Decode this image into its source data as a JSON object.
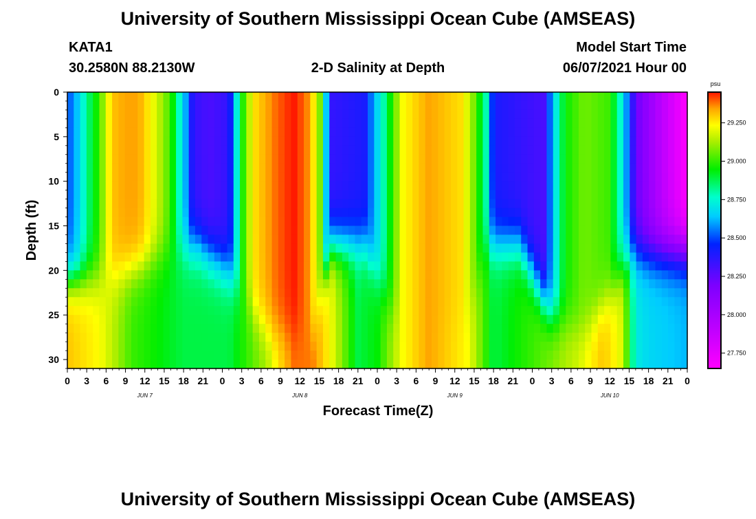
{
  "chart_data": {
    "type": "heatmap",
    "title": "University of Southern Mississippi Ocean Cube (AMSEAS)",
    "footer_title": "University of Southern Mississippi Ocean Cube (AMSEAS)",
    "station": "KATA1",
    "location": "30.2580N  88.2130W",
    "subtitle": "2-D Salinity at Depth",
    "model_start_label": "Model Start Time",
    "model_start": "06/07/2021 Hour 00",
    "xlabel": "Forecast Time(Z)",
    "ylabel": "Depth (ft)",
    "x_range_hours": [
      0,
      96
    ],
    "y_range_ft": [
      0,
      31
    ],
    "x_tick_labels": [
      "0",
      "3",
      "6",
      "9",
      "12",
      "15",
      "18",
      "21",
      "0",
      "3",
      "6",
      "9",
      "12",
      "15",
      "18",
      "21",
      "0",
      "3",
      "6",
      "9",
      "12",
      "15",
      "18",
      "21",
      "0",
      "3",
      "6",
      "9",
      "12",
      "15",
      "18",
      "21",
      "0"
    ],
    "y_ticks": [
      0,
      5,
      10,
      15,
      20,
      25,
      30
    ],
    "y_tick_labels": [
      "0",
      "5",
      "10",
      "15",
      "20",
      "25",
      "30"
    ],
    "day_labels": [
      {
        "hour": 12,
        "label": "JUN 7"
      },
      {
        "hour": 36,
        "label": "JUN 8"
      },
      {
        "hour": 60,
        "label": "JUN 9"
      },
      {
        "hour": 84,
        "label": "JUN 10"
      }
    ],
    "colorbar": {
      "units": "psu",
      "min": 27.65,
      "max": 29.45,
      "ticks": [
        29.25,
        29.0,
        28.75,
        28.5,
        28.25,
        28.0,
        27.75
      ],
      "tick_labels": [
        "29.250",
        "29.000",
        "28.750",
        "28.500",
        "28.250",
        "28.000",
        "27.750"
      ]
    },
    "surface_profile_psu": [
      [
        0,
        28.5
      ],
      [
        1,
        28.55
      ],
      [
        3,
        28.8
      ],
      [
        5,
        28.95
      ],
      [
        7,
        29.25
      ],
      [
        9,
        29.3
      ],
      [
        11,
        29.3
      ],
      [
        13,
        29.15
      ],
      [
        16,
        28.95
      ],
      [
        18,
        28.65
      ],
      [
        19.5,
        28.35
      ],
      [
        22,
        28.3
      ],
      [
        25,
        28.35
      ],
      [
        26,
        28.65
      ],
      [
        27,
        28.9
      ],
      [
        29,
        29.2
      ],
      [
        32,
        29.35
      ],
      [
        35,
        29.45
      ],
      [
        37,
        29.35
      ],
      [
        39,
        29.05
      ],
      [
        40,
        28.65
      ],
      [
        41,
        28.35
      ],
      [
        46,
        28.4
      ],
      [
        48,
        28.65
      ],
      [
        50,
        28.9
      ],
      [
        52,
        29.15
      ],
      [
        56,
        29.3
      ],
      [
        61,
        29.2
      ],
      [
        63,
        29.0
      ],
      [
        65,
        28.75
      ],
      [
        66,
        28.4
      ],
      [
        74,
        28.3
      ],
      [
        75,
        28.6
      ],
      [
        77,
        28.9
      ],
      [
        80,
        29.0
      ],
      [
        84,
        28.95
      ],
      [
        86,
        28.7
      ],
      [
        88,
        28.25
      ],
      [
        92,
        27.95
      ],
      [
        96,
        27.7
      ]
    ],
    "deep_profile_psu": [
      [
        0,
        29.25
      ],
      [
        5,
        29.15
      ],
      [
        10,
        28.95
      ],
      [
        18,
        28.85
      ],
      [
        25,
        28.85
      ],
      [
        31,
        29.05
      ],
      [
        35,
        29.35
      ],
      [
        38,
        29.35
      ],
      [
        42,
        29.05
      ],
      [
        45,
        28.85
      ],
      [
        48,
        28.9
      ],
      [
        52,
        29.15
      ],
      [
        56,
        29.3
      ],
      [
        62,
        29.15
      ],
      [
        66,
        28.85
      ],
      [
        72,
        28.95
      ],
      [
        79,
        29.1
      ],
      [
        83,
        29.25
      ],
      [
        86,
        29.1
      ],
      [
        88,
        28.7
      ],
      [
        90,
        28.65
      ],
      [
        96,
        28.6
      ]
    ],
    "mixed_layer_depth_ft": [
      [
        0,
        21
      ],
      [
        5,
        21
      ],
      [
        12,
        19
      ],
      [
        20,
        17
      ],
      [
        25,
        20
      ],
      [
        28,
        24
      ],
      [
        32,
        27
      ],
      [
        38,
        27
      ],
      [
        41,
        17
      ],
      [
        46,
        17
      ],
      [
        50,
        24
      ],
      [
        56,
        27
      ],
      [
        62,
        25
      ],
      [
        65,
        17
      ],
      [
        70,
        17
      ],
      [
        75,
        25
      ],
      [
        80,
        27
      ],
      [
        84,
        23
      ],
      [
        87,
        18
      ],
      [
        96,
        18
      ]
    ]
  }
}
